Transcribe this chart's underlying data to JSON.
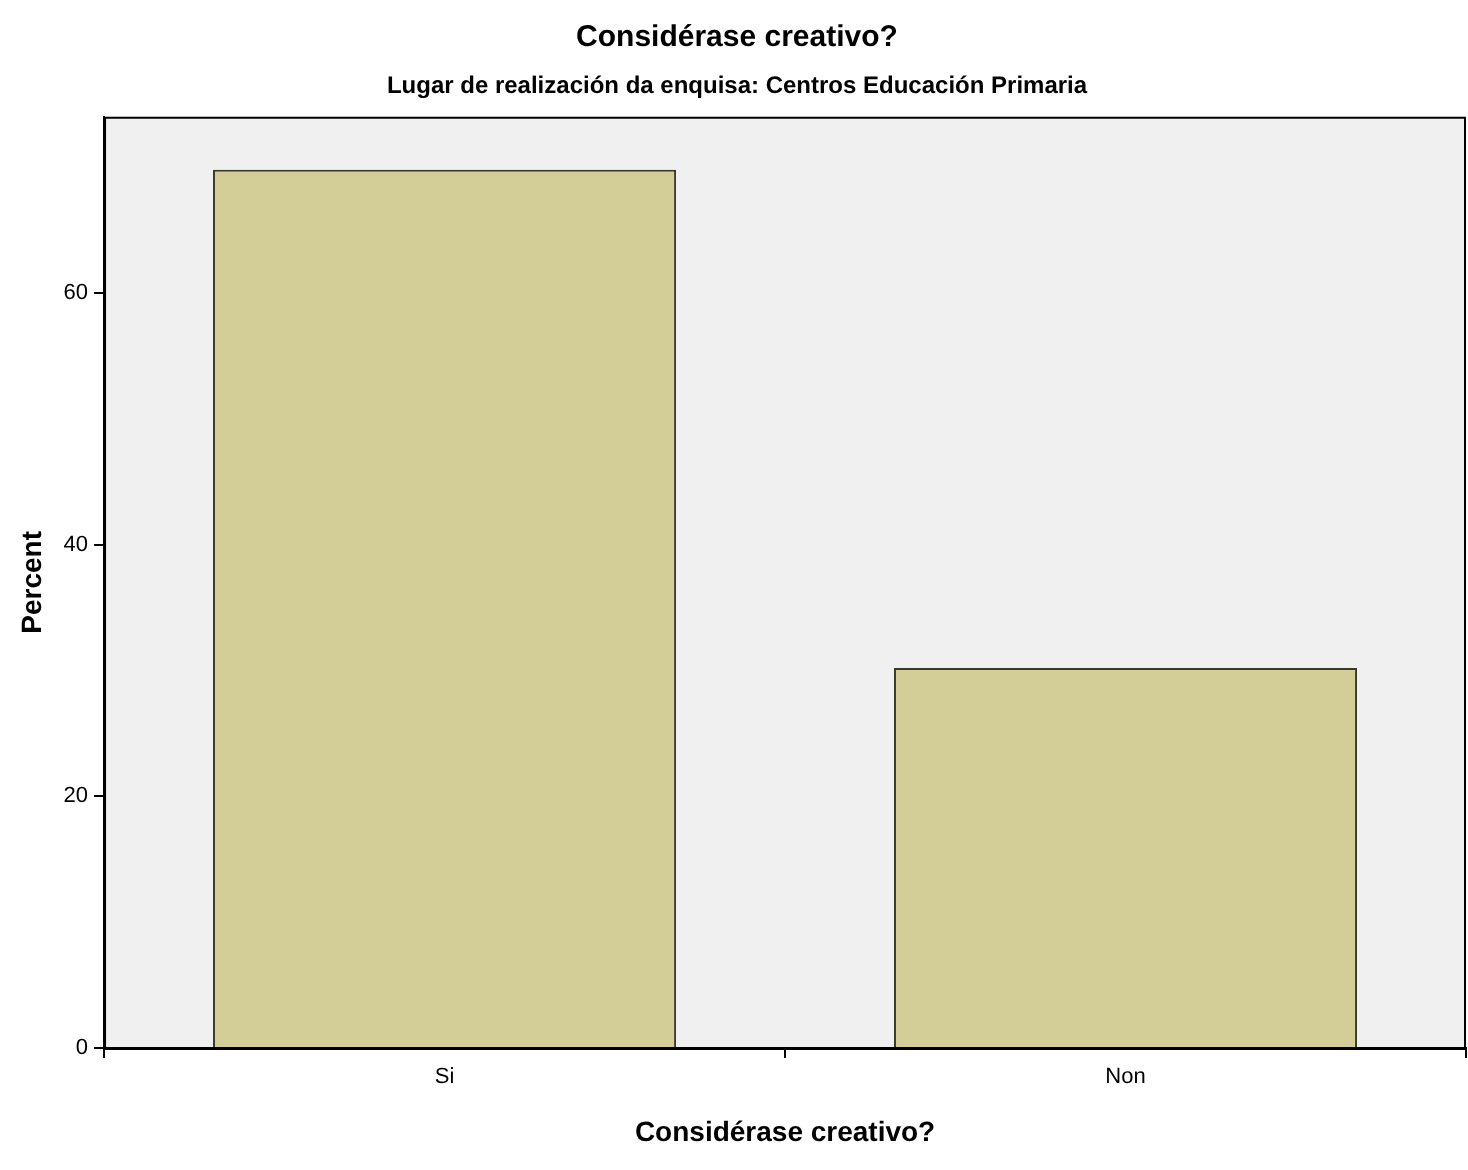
{
  "chart_data": {
    "type": "bar",
    "title": "Considérase creativo?",
    "subtitle": "Lugar de realización da enquisa: Centros Educación Primaria",
    "xlabel": "Considérase creativo?",
    "ylabel": "Percent",
    "categories": [
      "Si",
      "Non"
    ],
    "values": [
      69.8,
      30.2
    ],
    "color": "#d3ce97",
    "ylim": [
      0,
      74
    ],
    "yticks": [
      0,
      20,
      40,
      60
    ],
    "grid": false,
    "legend": false
  }
}
